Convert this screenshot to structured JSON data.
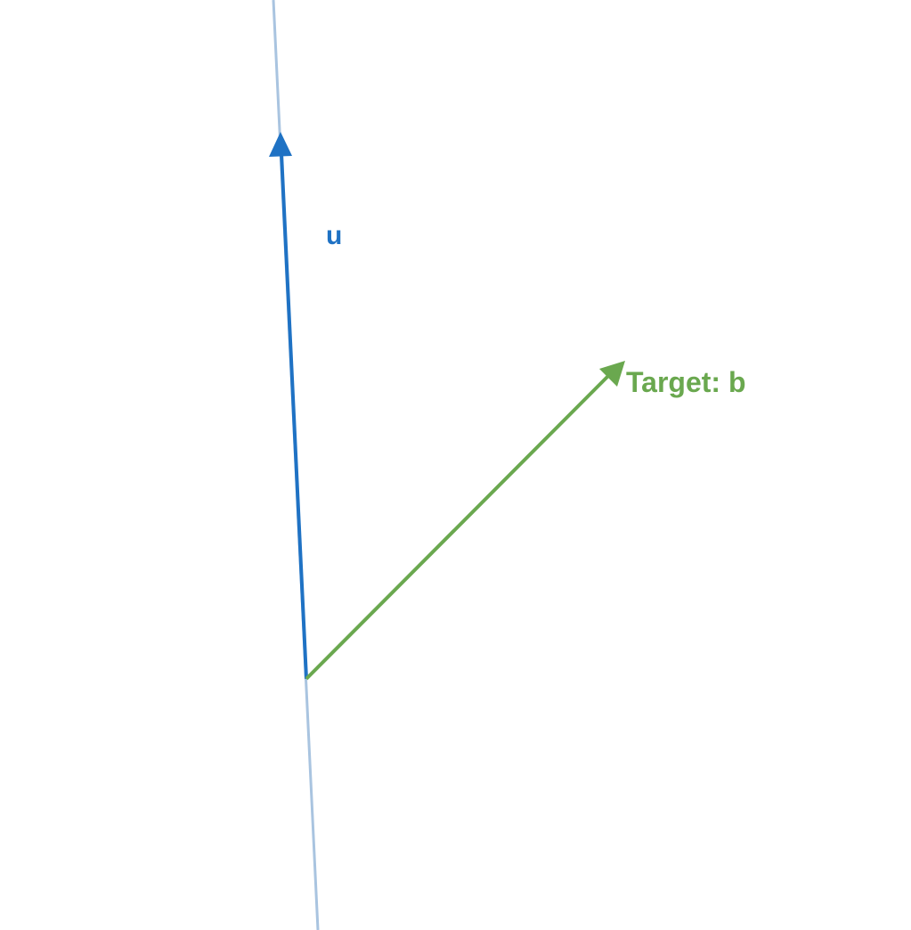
{
  "diagram": {
    "vectors": {
      "u": {
        "label": "u",
        "color": "#1f72c4"
      },
      "b": {
        "label": "Target: b",
        "color": "#6aa84f"
      }
    },
    "span_line": {
      "color": "#a9c4e0"
    },
    "background": "#ffffff"
  }
}
